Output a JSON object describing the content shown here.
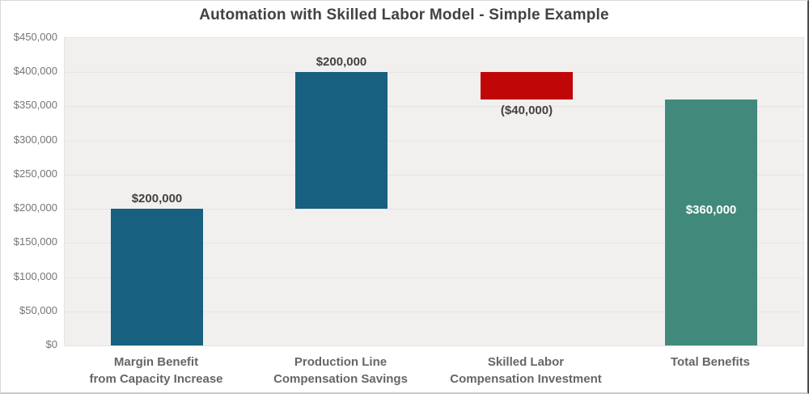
{
  "chart_data": {
    "type": "bar",
    "subtype": "waterfall",
    "title": "Automation with Skilled Labor Model - Simple Example",
    "xlabel": "",
    "ylabel": "",
    "ylim": [
      0,
      450000
    ],
    "ytick_step": 50000,
    "grid": true,
    "legend": "none",
    "plot_background": "#f1f0ef",
    "categories": [
      "Margin Benefit from Capacity Increase",
      "Production Line Compensation Savings",
      "Skilled Labor Compensation Investment",
      "Total Benefits"
    ],
    "yticks": [
      {
        "value": 0,
        "label": "$0"
      },
      {
        "value": 50000,
        "label": "$50,000"
      },
      {
        "value": 100000,
        "label": "$100,000"
      },
      {
        "value": 150000,
        "label": "$150,000"
      },
      {
        "value": 200000,
        "label": "$200,000"
      },
      {
        "value": 250000,
        "label": "$250,000"
      },
      {
        "value": 300000,
        "label": "$300,000"
      },
      {
        "value": 350000,
        "label": "$350,000"
      },
      {
        "value": 400000,
        "label": "$400,000"
      },
      {
        "value": 450000,
        "label": "$450,000"
      }
    ],
    "series": [
      {
        "key": "margin-benefit-from-capacity-increase",
        "category_lines": [
          "Margin Benefit",
          "from Capacity Increase"
        ],
        "start": 0,
        "end": 200000,
        "delta": 200000,
        "bar_label": "$200,000",
        "bar_label_position": "above",
        "color": "#17607f"
      },
      {
        "key": "production-line-compensation-savings",
        "category_lines": [
          "Production Line",
          "Compensation Savings"
        ],
        "start": 200000,
        "end": 400000,
        "delta": 200000,
        "bar_label": "$200,000",
        "bar_label_position": "above",
        "color": "#17607f"
      },
      {
        "key": "skilled-labor-compensation-investment",
        "category_lines": [
          "Skilled Labor",
          "Compensation Investment"
        ],
        "start": 400000,
        "end": 360000,
        "delta": -40000,
        "bar_label": "($40,000)",
        "bar_label_position": "below",
        "color": "#c00606"
      },
      {
        "key": "total-benefits",
        "category_lines": [
          "Total Benefits"
        ],
        "start": 0,
        "end": 360000,
        "delta": 360000,
        "bar_label": "$360,000",
        "bar_label_position": "inside",
        "color": "#418a7b"
      }
    ]
  }
}
